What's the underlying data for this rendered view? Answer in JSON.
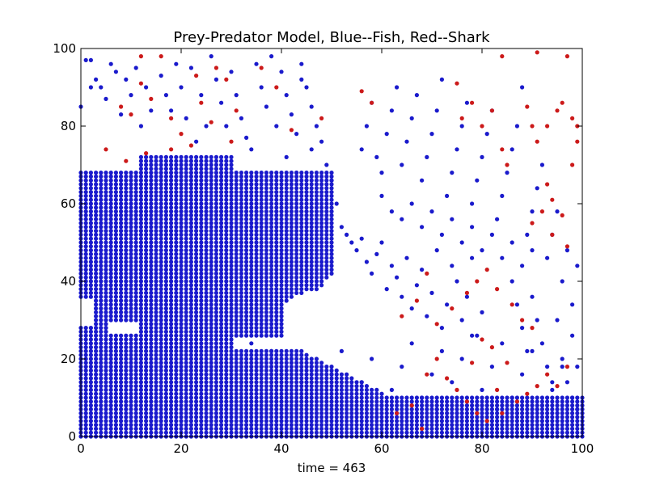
{
  "chart_data": {
    "type": "scatter",
    "title": "Prey-Predator Model, Blue--Fish, Red--Shark",
    "xlabel": "time = 463",
    "ylabel": "",
    "xlim": [
      0,
      100
    ],
    "ylim": [
      0,
      100
    ],
    "xticks": [
      0,
      20,
      40,
      60,
      80,
      100
    ],
    "yticks": [
      0,
      20,
      40,
      60,
      80,
      100
    ],
    "grid": false,
    "series": [
      {
        "name": "Fish",
        "color": "#1a1acc",
        "points": [
          [
            0,
            85
          ],
          [
            1,
            97
          ],
          [
            2,
            97
          ],
          [
            2,
            90
          ],
          [
            3,
            92
          ],
          [
            4,
            90
          ],
          [
            6,
            96
          ],
          [
            5,
            87
          ],
          [
            7,
            94
          ],
          [
            9,
            92
          ],
          [
            10,
            88
          ],
          [
            8,
            83
          ],
          [
            11,
            95
          ],
          [
            13,
            90
          ],
          [
            14,
            84
          ],
          [
            12,
            80
          ],
          [
            16,
            93
          ],
          [
            17,
            88
          ],
          [
            19,
            96
          ],
          [
            18,
            84
          ],
          [
            20,
            90
          ],
          [
            21,
            82
          ],
          [
            22,
            95
          ],
          [
            24,
            88
          ],
          [
            25,
            80
          ],
          [
            23,
            76
          ],
          [
            27,
            92
          ],
          [
            28,
            86
          ],
          [
            29,
            80
          ],
          [
            26,
            98
          ],
          [
            30,
            94
          ],
          [
            31,
            88
          ],
          [
            32,
            82
          ],
          [
            33,
            77
          ],
          [
            35,
            96
          ],
          [
            36,
            90
          ],
          [
            37,
            85
          ],
          [
            38,
            98
          ],
          [
            39,
            80
          ],
          [
            34,
            74
          ],
          [
            40,
            94
          ],
          [
            41,
            88
          ],
          [
            42,
            83
          ],
          [
            43,
            78
          ],
          [
            44,
            96
          ],
          [
            45,
            90
          ],
          [
            46,
            85
          ],
          [
            47,
            80
          ],
          [
            48,
            76
          ],
          [
            49,
            70
          ],
          [
            50,
            66
          ],
          [
            51,
            60
          ],
          [
            52,
            54
          ],
          [
            41,
            72
          ],
          [
            43,
            68
          ],
          [
            45,
            64
          ],
          [
            47,
            60
          ],
          [
            49,
            56
          ],
          [
            44,
            92
          ],
          [
            46,
            74
          ],
          [
            53,
            52
          ],
          [
            54,
            50
          ],
          [
            55,
            48
          ],
          [
            56,
            51
          ],
          [
            57,
            45
          ],
          [
            58,
            42
          ],
          [
            59,
            47
          ],
          [
            60,
            50
          ],
          [
            61,
            38
          ],
          [
            62,
            44
          ],
          [
            63,
            41
          ],
          [
            64,
            36
          ],
          [
            65,
            46
          ],
          [
            66,
            33
          ],
          [
            67,
            39
          ],
          [
            68,
            43
          ],
          [
            69,
            31
          ],
          [
            70,
            37
          ],
          [
            71,
            48
          ],
          [
            72,
            28
          ],
          [
            73,
            34
          ],
          [
            74,
            44
          ],
          [
            75,
            40
          ],
          [
            76,
            30
          ],
          [
            77,
            36
          ],
          [
            78,
            46
          ],
          [
            79,
            26
          ],
          [
            80,
            32
          ],
          [
            56,
            74
          ],
          [
            57,
            80
          ],
          [
            58,
            86
          ],
          [
            59,
            72
          ],
          [
            60,
            68
          ],
          [
            61,
            78
          ],
          [
            62,
            84
          ],
          [
            63,
            90
          ],
          [
            64,
            70
          ],
          [
            65,
            76
          ],
          [
            66,
            82
          ],
          [
            67,
            88
          ],
          [
            68,
            66
          ],
          [
            69,
            72
          ],
          [
            70,
            78
          ],
          [
            71,
            84
          ],
          [
            72,
            92
          ],
          [
            73,
            62
          ],
          [
            74,
            68
          ],
          [
            75,
            74
          ],
          [
            76,
            80
          ],
          [
            77,
            86
          ],
          [
            78,
            60
          ],
          [
            79,
            66
          ],
          [
            80,
            72
          ],
          [
            81,
            78
          ],
          [
            82,
            84
          ],
          [
            83,
            56
          ],
          [
            84,
            62
          ],
          [
            85,
            68
          ],
          [
            86,
            74
          ],
          [
            87,
            80
          ],
          [
            88,
            90
          ],
          [
            89,
            52
          ],
          [
            90,
            58
          ],
          [
            91,
            64
          ],
          [
            92,
            70
          ],
          [
            93,
            46
          ],
          [
            94,
            52
          ],
          [
            95,
            58
          ],
          [
            96,
            40
          ],
          [
            97,
            48
          ],
          [
            98,
            34
          ],
          [
            99,
            44
          ],
          [
            86,
            40
          ],
          [
            87,
            34
          ],
          [
            88,
            28
          ],
          [
            89,
            22
          ],
          [
            90,
            36
          ],
          [
            91,
            30
          ],
          [
            92,
            24
          ],
          [
            93,
            18
          ],
          [
            94,
            12
          ],
          [
            95,
            30
          ],
          [
            96,
            20
          ],
          [
            97,
            14
          ],
          [
            98,
            26
          ],
          [
            99,
            18
          ],
          [
            60,
            62
          ],
          [
            62,
            58
          ],
          [
            64,
            56
          ],
          [
            66,
            60
          ],
          [
            68,
            54
          ],
          [
            70,
            58
          ],
          [
            72,
            52
          ],
          [
            74,
            56
          ],
          [
            76,
            50
          ],
          [
            78,
            54
          ],
          [
            80,
            48
          ],
          [
            82,
            52
          ],
          [
            84,
            46
          ],
          [
            86,
            50
          ],
          [
            88,
            44
          ],
          [
            90,
            48
          ],
          [
            42,
            20
          ],
          [
            44,
            14
          ],
          [
            46,
            18
          ],
          [
            48,
            12
          ],
          [
            50,
            16
          ],
          [
            52,
            22
          ],
          [
            54,
            10
          ],
          [
            56,
            14
          ],
          [
            58,
            20
          ],
          [
            60,
            8
          ],
          [
            62,
            12
          ],
          [
            64,
            18
          ],
          [
            66,
            24
          ],
          [
            68,
            10
          ],
          [
            70,
            16
          ],
          [
            72,
            22
          ],
          [
            74,
            14
          ],
          [
            76,
            20
          ],
          [
            78,
            26
          ],
          [
            80,
            12
          ],
          [
            82,
            18
          ],
          [
            84,
            24
          ],
          [
            86,
            10
          ],
          [
            88,
            16
          ],
          [
            90,
            22
          ],
          [
            92,
            8
          ],
          [
            94,
            14
          ],
          [
            96,
            18
          ],
          [
            98,
            10
          ],
          [
            34,
            24
          ],
          [
            36,
            18
          ],
          [
            38,
            22
          ],
          [
            40,
            16
          ],
          [
            32,
            14
          ],
          [
            30,
            20
          ],
          [
            35,
            12
          ],
          [
            39,
            10
          ],
          [
            43,
            8
          ],
          [
            47,
            6
          ],
          [
            51,
            7
          ],
          [
            55,
            6
          ],
          [
            59,
            5
          ],
          [
            63,
            6
          ],
          [
            67,
            5
          ],
          [
            71,
            7
          ],
          [
            75,
            6
          ],
          [
            79,
            8
          ],
          [
            83,
            7
          ],
          [
            87,
            6
          ],
          [
            91,
            7
          ],
          [
            95,
            6
          ],
          [
            99,
            7
          ]
        ]
      },
      {
        "name": "Shark",
        "color": "#cc1a1a",
        "points": [
          [
            12,
            98
          ],
          [
            16,
            98
          ],
          [
            23,
            93
          ],
          [
            27,
            95
          ],
          [
            29,
            92
          ],
          [
            12,
            91
          ],
          [
            14,
            87
          ],
          [
            8,
            85
          ],
          [
            10,
            83
          ],
          [
            18,
            82
          ],
          [
            20,
            78
          ],
          [
            24,
            86
          ],
          [
            26,
            81
          ],
          [
            30,
            76
          ],
          [
            31,
            84
          ],
          [
            36,
            95
          ],
          [
            39,
            90
          ],
          [
            42,
            79
          ],
          [
            48,
            82
          ],
          [
            5,
            74
          ],
          [
            9,
            71
          ],
          [
            13,
            73
          ],
          [
            18,
            74
          ],
          [
            22,
            75
          ],
          [
            56,
            89
          ],
          [
            58,
            86
          ],
          [
            75,
            91
          ],
          [
            76,
            82
          ],
          [
            78,
            86
          ],
          [
            80,
            80
          ],
          [
            82,
            84
          ],
          [
            84,
            74
          ],
          [
            85,
            70
          ],
          [
            89,
            85
          ],
          [
            91,
            76
          ],
          [
            93,
            80
          ],
          [
            95,
            84
          ],
          [
            96,
            86
          ],
          [
            99,
            76
          ],
          [
            98,
            70
          ],
          [
            98,
            82
          ],
          [
            99,
            80
          ],
          [
            97,
            98
          ],
          [
            91,
            99
          ],
          [
            84,
            98
          ],
          [
            90,
            80
          ],
          [
            93,
            65
          ],
          [
            94,
            61
          ],
          [
            92,
            58
          ],
          [
            96,
            57
          ],
          [
            94,
            52
          ],
          [
            90,
            55
          ],
          [
            97,
            49
          ],
          [
            64,
            31
          ],
          [
            67,
            35
          ],
          [
            69,
            42
          ],
          [
            71,
            29
          ],
          [
            74,
            33
          ],
          [
            77,
            37
          ],
          [
            79,
            40
          ],
          [
            81,
            43
          ],
          [
            83,
            38
          ],
          [
            86,
            34
          ],
          [
            88,
            30
          ],
          [
            90,
            28
          ],
          [
            73,
            15
          ],
          [
            75,
            12
          ],
          [
            77,
            9
          ],
          [
            79,
            6
          ],
          [
            81,
            4
          ],
          [
            84,
            6
          ],
          [
            87,
            9
          ],
          [
            89,
            11
          ],
          [
            91,
            13
          ],
          [
            93,
            16
          ],
          [
            95,
            13
          ],
          [
            97,
            18
          ],
          [
            85,
            19
          ],
          [
            82,
            23
          ],
          [
            80,
            25
          ],
          [
            78,
            19
          ],
          [
            83,
            12
          ],
          [
            71,
            20
          ],
          [
            69,
            16
          ],
          [
            66,
            8
          ],
          [
            63,
            6
          ],
          [
            68,
            2
          ]
        ]
      }
    ]
  }
}
